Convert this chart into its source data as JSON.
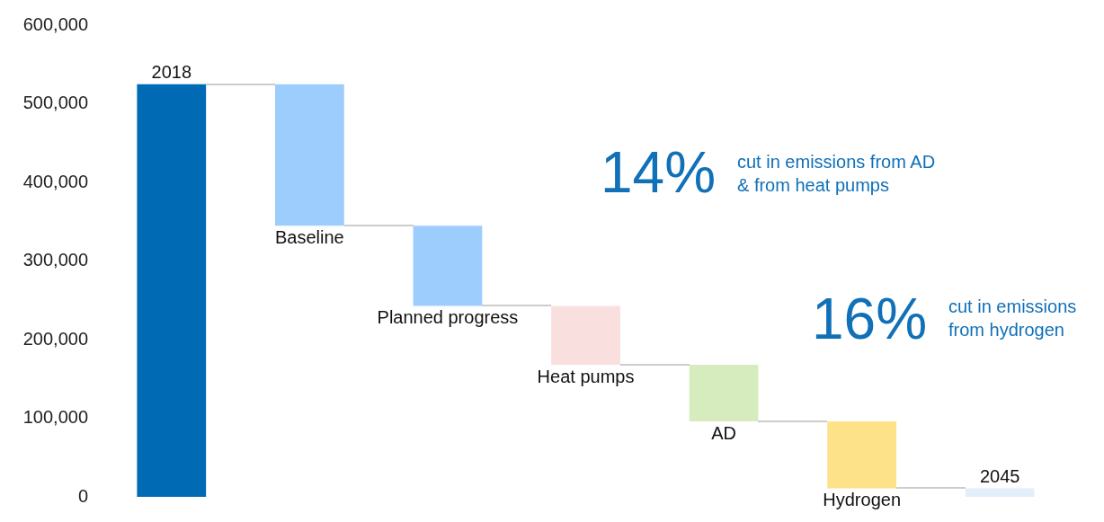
{
  "chart_data": {
    "type": "bar",
    "categories": [
      "2018",
      "Baseline",
      "Planned progress",
      "Heat pumps",
      "AD",
      "Hydrogen",
      "2045"
    ],
    "values": [
      525000,
      -180000,
      -102000,
      -75000,
      -72000,
      -85000,
      11000
    ],
    "base": [
      0,
      525000,
      345000,
      243000,
      168000,
      96000,
      0
    ],
    "colors": [
      "#006ab5",
      "#9dcdfd",
      "#9dcdfd",
      "#fadfdf",
      "#d6ecbf",
      "#fde28a",
      "#e3eefb"
    ],
    "ylim": [
      0,
      600000
    ],
    "yticks": [
      {
        "value": 0,
        "label": "0"
      },
      {
        "value": 100000,
        "label": "100,000"
      },
      {
        "value": 200000,
        "label": "200,000"
      },
      {
        "value": 300000,
        "label": "300,000"
      },
      {
        "value": 400000,
        "label": "400,000"
      },
      {
        "value": 500000,
        "label": "500,000"
      },
      {
        "value": 600000,
        "label": "600,000"
      }
    ],
    "grid": false,
    "legend": false,
    "annotations": [
      "14%",
      "cut in emissions from AD\n& from heat pumps",
      "16%",
      "cut in emissions\nfrom hydrogen"
    ]
  }
}
